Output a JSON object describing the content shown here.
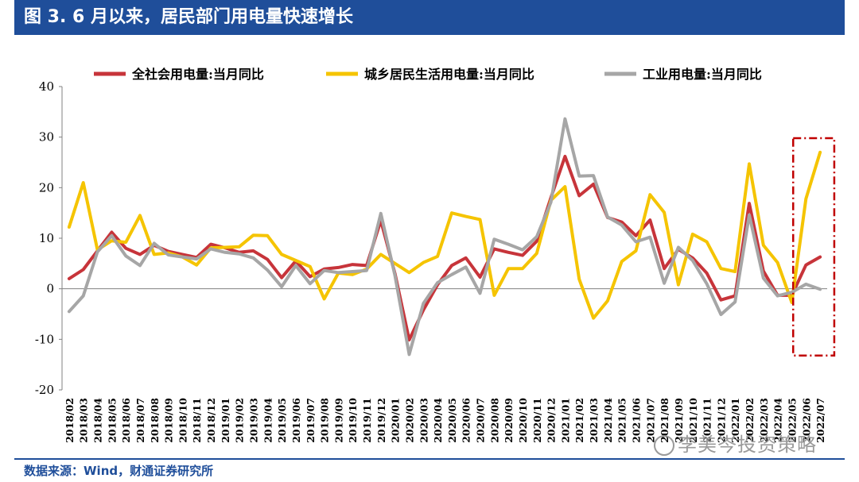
{
  "header": {
    "title": "图 3. 6 月以来，居民部门用电量快速增长"
  },
  "footer": {
    "source": "数据来源：Wind，财通证券研究所"
  },
  "watermark": {
    "text": "李美岑投资策略"
  },
  "chart_data": {
    "type": "line",
    "title": "",
    "xlabel": "",
    "ylabel": "",
    "ylim": [
      -20,
      40
    ],
    "yticks": [
      40,
      30,
      20,
      10,
      0,
      -10,
      -20
    ],
    "grid": false,
    "legend_position": "top",
    "categories": [
      "2018/02",
      "2018/03",
      "2018/04",
      "2018/05",
      "2018/06",
      "2018/07",
      "2018/08",
      "2018/09",
      "2018/10",
      "2018/11",
      "2018/12",
      "2019/01",
      "2019/02",
      "2019/03",
      "2019/04",
      "2019/05",
      "2019/06",
      "2019/07",
      "2019/08",
      "2019/09",
      "2019/10",
      "2019/11",
      "2019/12",
      "2020/01",
      "2020/02",
      "2020/03",
      "2020/04",
      "2020/05",
      "2020/06",
      "2020/07",
      "2020/08",
      "2020/09",
      "2020/10",
      "2020/11",
      "2020/12",
      "2021/01",
      "2021/02",
      "2021/03",
      "2021/04",
      "2021/05",
      "2021/06",
      "2021/07",
      "2021/08",
      "2021/09",
      "2021/10",
      "2021/11",
      "2021/12",
      "2022/01",
      "2022/02",
      "2022/03",
      "2022/04",
      "2022/05",
      "2022/06",
      "2022/07"
    ],
    "series": [
      {
        "name": "全社会用电量:当月同比",
        "color": "#c7343a",
        "values": [
          2.0,
          3.8,
          7.5,
          11.2,
          8.0,
          6.8,
          8.6,
          7.4,
          6.8,
          6.2,
          8.8,
          8.1,
          7.2,
          7.5,
          5.8,
          2.2,
          5.5,
          2.4,
          3.9,
          4.2,
          4.8,
          4.6,
          13.5,
          3.0,
          -10.1,
          -4.2,
          0.8,
          4.6,
          6.1,
          2.3,
          7.9,
          7.2,
          6.6,
          9.4,
          18.0,
          26.2,
          18.4,
          20.7,
          14.1,
          13.2,
          10.5,
          13.6,
          4.0,
          7.8,
          6.1,
          3.1,
          -2.2,
          -1.4,
          16.9,
          3.5,
          -1.3,
          -1.3,
          4.7,
          6.3
        ]
      },
      {
        "name": "城乡居民生活用电量:当月同比",
        "color": "#f5c400",
        "values": [
          12.2,
          21.0,
          7.7,
          9.5,
          9.2,
          14.5,
          6.8,
          7.1,
          6.3,
          4.7,
          8.1,
          8.2,
          8.3,
          10.6,
          10.5,
          6.8,
          5.6,
          4.4,
          -2.0,
          3.1,
          2.8,
          3.9,
          6.8,
          5.0,
          3.2,
          5.2,
          6.4,
          15.0,
          14.3,
          13.7,
          -1.3,
          4.0,
          4.0,
          7.0,
          17.5,
          20.2,
          1.9,
          -5.8,
          -2.4,
          5.4,
          7.5,
          18.6,
          15.1,
          0.8,
          10.8,
          9.3,
          4.0,
          3.4,
          24.7,
          8.6,
          5.2,
          -2.7,
          17.8,
          27.0
        ]
      },
      {
        "name": "工业用电量:当月同比",
        "color": "#a6a6a6",
        "values": [
          -4.5,
          -1.4,
          7.3,
          10.5,
          6.5,
          4.6,
          9.0,
          6.7,
          6.3,
          5.9,
          7.9,
          7.2,
          6.9,
          6.1,
          3.7,
          0.4,
          4.6,
          1.0,
          3.6,
          3.2,
          3.4,
          3.6,
          14.9,
          2.6,
          -13.0,
          -2.9,
          1.2,
          2.8,
          4.3,
          -0.9,
          9.8,
          8.8,
          7.7,
          10.3,
          17.1,
          33.6,
          22.3,
          22.4,
          14.2,
          12.6,
          9.3,
          10.2,
          1.1,
          8.2,
          5.6,
          1.0,
          -5.1,
          -2.6,
          14.6,
          2.1,
          -1.4,
          -0.7,
          0.9,
          -0.1
        ]
      }
    ]
  }
}
